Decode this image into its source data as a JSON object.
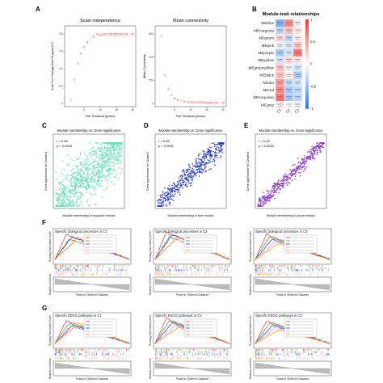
{
  "panels": {
    "A": {
      "letter": "A",
      "left": {
        "title": "Scale independence",
        "xlabel": "Soft Threshold (power)",
        "ylabel": "Scale Free Topology Model Fit,signed R^2",
        "xticks": [
          "5",
          "10",
          "15",
          "20"
        ],
        "yticks": [
          "0",
          "0.2",
          "0.4",
          "0.6",
          "0.8"
        ]
      },
      "right": {
        "title": "Mean connectivity",
        "xlabel": "Soft Threshold (power)",
        "ylabel": "Mean Connectivity",
        "xticks": [
          "5",
          "10",
          "15",
          "20"
        ],
        "yticks": [
          "0",
          "200",
          "400",
          "600"
        ]
      }
    },
    "B": {
      "letter": "B",
      "title": "Module-trait relationships",
      "rows": [
        "MEblue",
        "MEmagenta",
        "MEgreen",
        "MEpink",
        "MEpurple",
        "MEyellow",
        "MEgreenyellow",
        "MEblack",
        "MEtan",
        "MEred",
        "MEturquoise",
        "MEgrey"
      ],
      "cols": [
        "C1",
        "C2",
        "C3"
      ],
      "legend_ticks": [
        "1",
        "0.5",
        "0",
        "-0.5",
        "-1"
      ]
    },
    "C": {
      "letter": "C",
      "title": "Module membership vs. Gene significance",
      "stat_r": "r = 0.64",
      "stat_p": "p = 0.0004",
      "xlabel": "Module membership in turquoise module",
      "ylabel": "Gene significance for Cluster1"
    },
    "D": {
      "letter": "D",
      "title": "Module membership vs. Gene significance",
      "stat_r": "r = 0.85",
      "stat_p": "p < 0.0001",
      "xlabel": "Module membership in blue module",
      "ylabel": "Gene significance for Cluster2"
    },
    "E": {
      "letter": "E",
      "title": "Module membership vs. Gene significance",
      "stat_r": "r = 0.90",
      "stat_p": "p < 0.0001",
      "xlabel": "Module membership in purple module",
      "ylabel": "Gene significance for Cluster3"
    },
    "F": {
      "letter": "F",
      "titles": [
        "Specific biological processes in C1",
        "Specific biological processes in C2",
        "Specific biological processes in C3"
      ],
      "ylabel_top": "Running Enrichment Score",
      "ylabel_bottom": "Ranked List Metric",
      "xlabel": "Rank in Ordered Dataset"
    },
    "G": {
      "letter": "G",
      "titles": [
        "Specific KEGG pathways in C1",
        "Specific KEGG pathways in C2",
        "Specific KEGG pathways in C3"
      ],
      "ylabel_top": "Running Enrichment Score",
      "ylabel_bottom": "Ranked List Metric",
      "xlabel": "Rank in Ordered Dataset"
    }
  },
  "chart_data": [
    {
      "type": "scatter",
      "panel": "A-left",
      "title": "Scale independence",
      "xlabel": "Soft Threshold (power)",
      "xlim": [
        0,
        20
      ],
      "ylim": [
        0,
        0.9
      ],
      "color": "#e0302a",
      "x": [
        1,
        2,
        3,
        4,
        5,
        6,
        7,
        8,
        9,
        10,
        11,
        12,
        13,
        14,
        15,
        16,
        17,
        18,
        20
      ],
      "y": [
        0.05,
        0.3,
        0.5,
        0.62,
        0.7,
        0.76,
        0.8,
        0.83,
        0.86,
        0.85,
        0.86,
        0.86,
        0.86,
        0.86,
        0.86,
        0.86,
        0.86,
        0.86,
        0.86
      ]
    },
    {
      "type": "scatter",
      "panel": "A-right",
      "title": "Mean connectivity",
      "xlabel": "Soft Threshold (power)",
      "xlim": [
        0,
        20
      ],
      "ylim": [
        0,
        700
      ],
      "color": "#e0302a",
      "x": [
        1,
        2,
        3,
        4,
        5,
        6,
        7,
        8,
        9,
        10,
        11,
        12,
        13,
        14,
        15,
        16,
        17,
        18,
        20
      ],
      "y": [
        650,
        270,
        140,
        80,
        50,
        35,
        25,
        20,
        16,
        14,
        12,
        11,
        10,
        9,
        8,
        8,
        7,
        7,
        6
      ]
    },
    {
      "type": "heatmap",
      "panel": "B",
      "title": "Module-trait relationships",
      "rows": [
        "MEblue",
        "MEmagenta",
        "MEgreen",
        "MEpink",
        "MEpurple",
        "MEyellow",
        "MEgreenyellow",
        "MEblack",
        "MEtan",
        "MEred",
        "MEturquoise",
        "MEgrey"
      ],
      "cols": [
        "C1",
        "C2",
        "C3"
      ],
      "values": [
        [
          -0.6,
          0.6,
          -0.1
        ],
        [
          -0.3,
          0.3,
          0.1
        ],
        [
          0.2,
          -0.3,
          0.1
        ],
        [
          -0.1,
          -0.2,
          0.3
        ],
        [
          -0.4,
          -0.2,
          0.7
        ],
        [
          -0.2,
          0.2,
          0.1
        ],
        [
          0.3,
          -0.1,
          -0.2
        ],
        [
          0.3,
          0.1,
          -0.4
        ],
        [
          0.5,
          -0.3,
          -0.2
        ],
        [
          0.6,
          -0.4,
          -0.3
        ],
        [
          0.7,
          -0.4,
          -0.3
        ],
        [
          0.1,
          0.0,
          -0.1
        ]
      ],
      "scale": [
        -1,
        1
      ]
    },
    {
      "type": "scatter",
      "panel": "C",
      "title": "Module membership vs. Gene significance",
      "color": "#60e0b0",
      "n_points": 900,
      "r": 0.64,
      "xlim": [
        0.1,
        0.8
      ],
      "ylim": [
        0.1,
        0.7
      ]
    },
    {
      "type": "scatter",
      "panel": "D",
      "title": "Module membership vs. Gene significance",
      "color": "#2438b8",
      "n_points": 450,
      "r": 0.85,
      "xlim": [
        0.2,
        0.9
      ],
      "ylim": [
        0.2,
        0.9
      ]
    },
    {
      "type": "scatter",
      "panel": "E",
      "title": "Module membership vs. Gene significance",
      "color": "#8a3cc8",
      "n_points": 420,
      "r": 0.9,
      "xlim": [
        0.4,
        0.9
      ],
      "ylim": [
        0.2,
        0.9
      ]
    },
    {
      "type": "line",
      "panel": "F",
      "plots": [
        {
          "title": "Specific biological processes in C1",
          "series_colors": [
            "#e33",
            "#3a3",
            "#33e",
            "#e9e",
            "#e90"
          ],
          "peaks": [
            0.55,
            0.45,
            0.5,
            0.4,
            0.48
          ]
        },
        {
          "title": "Specific biological processes in C2",
          "series_colors": [
            "#e33",
            "#3a3",
            "#33e",
            "#e9e",
            "#e90"
          ],
          "peaks": [
            0.6,
            0.5,
            0.55,
            0.45,
            0.5
          ]
        },
        {
          "title": "Specific biological processes in C3",
          "series_colors": [
            "#e33",
            "#3a3",
            "#33e",
            "#e9e",
            "#e90"
          ],
          "peaks": [
            0.55,
            0.5,
            0.45,
            0.4,
            0.35
          ]
        }
      ]
    },
    {
      "type": "line",
      "panel": "G",
      "plots": [
        {
          "title": "Specific KEGG pathways in C1",
          "series_colors": [
            "#e33",
            "#3a3",
            "#33e",
            "#e9e",
            "#e90"
          ],
          "peaks": [
            0.5,
            0.45,
            0.4,
            0.35,
            0.45
          ]
        },
        {
          "title": "Specific KEGG pathways in C2",
          "series_colors": [
            "#e33",
            "#3a3",
            "#33e",
            "#e9e",
            "#e90"
          ],
          "peaks": [
            0.55,
            0.5,
            0.45,
            0.4,
            0.35
          ]
        },
        {
          "title": "Specific KEGG pathways in C3",
          "series_colors": [
            "#e33",
            "#3a3",
            "#33e",
            "#e9e",
            "#e90"
          ],
          "peaks": [
            0.5,
            0.45,
            0.4,
            0.35,
            0.3
          ]
        }
      ]
    }
  ]
}
